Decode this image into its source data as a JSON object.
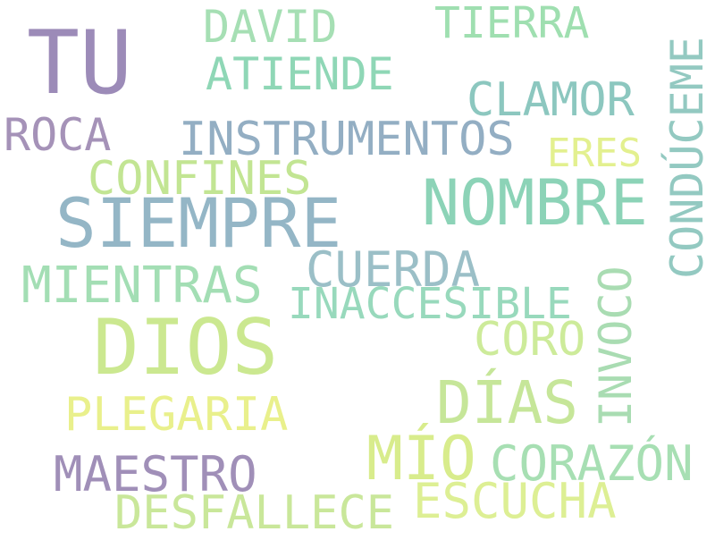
{
  "words": {
    "tu": {
      "text": "TU",
      "color": "#9c8bb8"
    },
    "david": {
      "text": "DAVID",
      "color": "#a6dfb4"
    },
    "tierra": {
      "text": "TIERRA",
      "color": "#9fdfb0"
    },
    "atiende": {
      "text": "ATIENDE",
      "color": "#8fd7b6"
    },
    "clamor": {
      "text": "CLAMOR",
      "color": "#8cc7bf"
    },
    "roca": {
      "text": "ROCA",
      "color": "#a592b8"
    },
    "instrumentos": {
      "text": "INSTRUMENTOS",
      "color": "#93aec3"
    },
    "eres": {
      "text": "ERES",
      "color": "#e3f08f"
    },
    "confines": {
      "text": "CONFINES",
      "color": "#c2e593"
    },
    "nombre": {
      "text": "NOMBRE",
      "color": "#8cd3b7"
    },
    "siempre": {
      "text": "SIEMPRE",
      "color": "#94b6c6"
    },
    "conduceme": {
      "text": "CONDÚCEME",
      "color": "#93c9c1"
    },
    "cuerda": {
      "text": "CUERDA",
      "color": "#9bbfc7"
    },
    "mientras": {
      "text": "MIENTRAS",
      "color": "#a3deb4"
    },
    "inaccesible": {
      "text": "INACCESIBLE",
      "color": "#98d9bc"
    },
    "invoco": {
      "text": "INVOCO",
      "color": "#a9dcb2"
    },
    "dios": {
      "text": "DIOS",
      "color": "#cbe890"
    },
    "coro": {
      "text": "CORO",
      "color": "#cdeb9a"
    },
    "dias": {
      "text": "DÍAS",
      "color": "#c6e699"
    },
    "plegaria": {
      "text": "PLEGARIA",
      "color": "#e9f08c"
    },
    "mio": {
      "text": "MÍO",
      "color": "#d8ec8c"
    },
    "corazon": {
      "text": "CORAZÓN",
      "color": "#a7dfb3"
    },
    "maestro": {
      "text": "MAESTRO",
      "color": "#a08fb8"
    },
    "escucha": {
      "text": "ESCUCHA",
      "color": "#ddef94"
    },
    "desfallece": {
      "text": "DESFALLECE",
      "color": "#c9e79a"
    }
  }
}
